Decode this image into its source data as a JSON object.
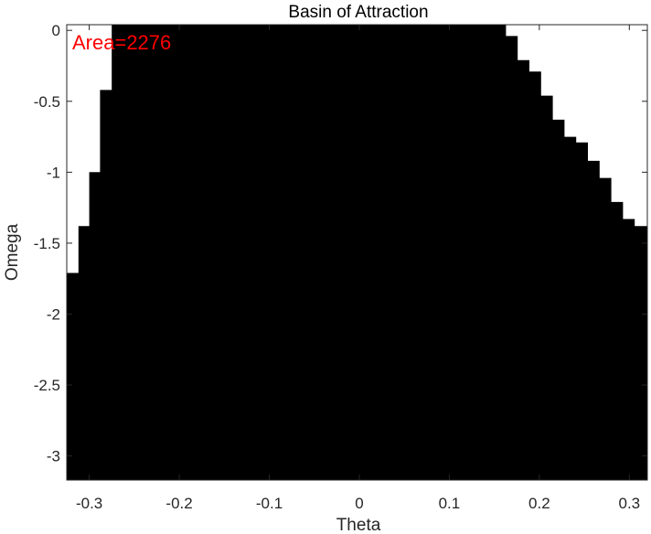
{
  "chart_data": {
    "type": "heatmap",
    "title": "Basin of Attraction",
    "xlabel": "Theta",
    "ylabel": "Omega",
    "xlim": [
      -0.325,
      0.32
    ],
    "ylim": [
      -3.17,
      0.04
    ],
    "xticks": [
      -0.3,
      -0.2,
      -0.1,
      0,
      0.1,
      0.2,
      0.3
    ],
    "xtick_labels": [
      "-0.3",
      "-0.2",
      "-0.1",
      "0",
      "0.1",
      "0.2",
      "0.3"
    ],
    "yticks": [
      0,
      -0.5,
      -1,
      -1.5,
      -2,
      -2.5,
      -3
    ],
    "ytick_labels": [
      "0",
      "-0.5",
      "-1",
      "-1.5",
      "-2",
      "-2.5",
      "-3"
    ],
    "annotation": {
      "text": "Area=2276",
      "color": "#ff0000"
    },
    "colors": {
      "basin": "#000000",
      "outside": "#ffffff",
      "axis": "#262626"
    },
    "basin_region": {
      "description_of_fill": "black region is the basin; white outside",
      "lower_boundary_omega": -3.17,
      "left_edge": [
        {
          "theta": -0.325,
          "omega_max": -1.71
        },
        {
          "theta": -0.312,
          "omega_max": -1.38
        },
        {
          "theta": -0.3,
          "omega_max": -1.0
        },
        {
          "theta": -0.288,
          "omega_max": -0.42
        },
        {
          "theta": -0.275,
          "omega_max": 0.04
        }
      ],
      "right_edge": [
        {
          "theta": 0.15,
          "omega_max": 0.04
        },
        {
          "theta": 0.163,
          "omega_max": -0.04
        },
        {
          "theta": 0.176,
          "omega_max": -0.21
        },
        {
          "theta": 0.189,
          "omega_max": -0.29
        },
        {
          "theta": 0.202,
          "omega_max": -0.46
        },
        {
          "theta": 0.215,
          "omega_max": -0.63
        },
        {
          "theta": 0.228,
          "omega_max": -0.75
        },
        {
          "theta": 0.241,
          "omega_max": -0.79
        },
        {
          "theta": 0.254,
          "omega_max": -0.92
        },
        {
          "theta": 0.267,
          "omega_max": -1.04
        },
        {
          "theta": 0.28,
          "omega_max": -1.21
        },
        {
          "theta": 0.293,
          "omega_max": -1.33
        },
        {
          "theta": 0.306,
          "omega_max": -1.38
        },
        {
          "theta": 0.32,
          "omega_max": -1.38
        }
      ]
    }
  }
}
